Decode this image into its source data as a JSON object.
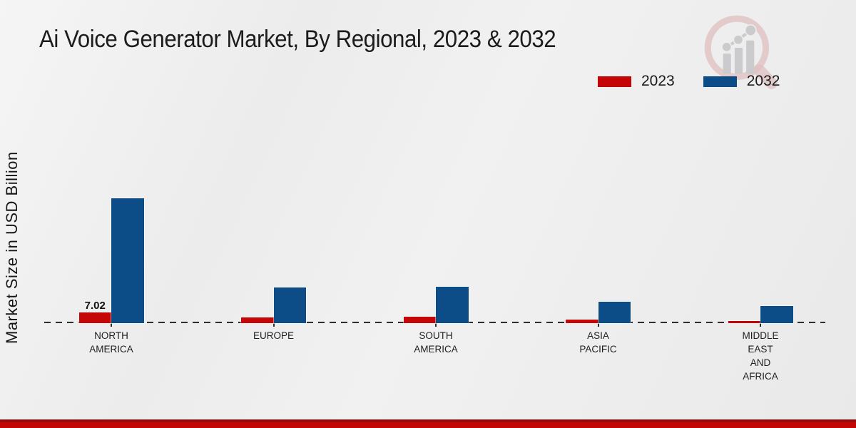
{
  "chart_data": {
    "type": "bar",
    "title": "Ai Voice Generator Market, By Regional, 2023 & 2032",
    "ylabel": "Market Size in USD Billion",
    "categories": [
      "NORTH AMERICA",
      "EUROPE",
      "SOUTH AMERICA",
      "ASIA PACIFIC",
      "MIDDLE EAST AND AFRICA"
    ],
    "category_display": [
      "NORTH\nAMERICA",
      "EUROPE",
      "SOUTH\nAMERICA",
      "ASIA\nPACIFIC",
      "MIDDLE\nEAST\nAND\nAFRICA"
    ],
    "series": [
      {
        "name": "2023",
        "color": "#c40606",
        "values": [
          7.02,
          3.5,
          4.0,
          2.1,
          1.4
        ]
      },
      {
        "name": "2032",
        "color": "#0d4d87",
        "values": [
          81.7,
          23.2,
          23.6,
          14.0,
          11.0
        ]
      }
    ],
    "ylim": [
      0,
      85
    ],
    "grid": false,
    "legend_position": "top-right",
    "baseline_style": "dashed",
    "data_labels": [
      {
        "category_index": 0,
        "series_index": 0,
        "text": "7.02"
      }
    ]
  },
  "watermark_icon": "magnifier-bar-chart-logo",
  "footer": {
    "strip_color": "#c20606",
    "strip_edge_color": "#8f0c0c"
  }
}
